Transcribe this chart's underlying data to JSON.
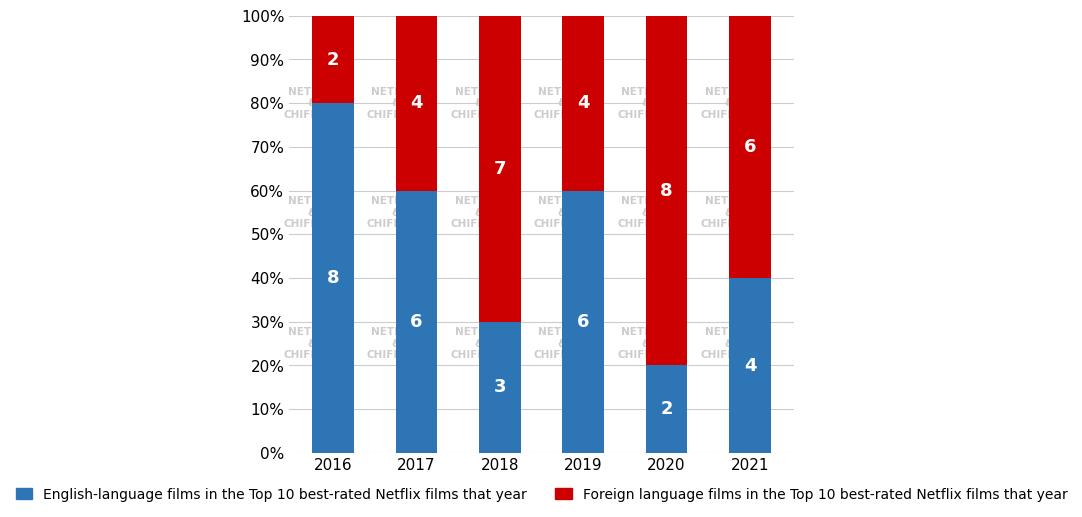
{
  "years": [
    "2016",
    "2017",
    "2018",
    "2019",
    "2020",
    "2021"
  ],
  "english_counts": [
    8,
    6,
    3,
    6,
    2,
    4
  ],
  "foreign_counts": [
    2,
    4,
    7,
    4,
    8,
    6
  ],
  "english_pct": [
    80,
    60,
    30,
    60,
    20,
    40
  ],
  "foreign_pct": [
    20,
    40,
    70,
    40,
    80,
    60
  ],
  "english_color": "#2E75B6",
  "foreign_color": "#CC0000",
  "background_color": "#FFFFFF",
  "grid_color": "#CCCCCC",
  "text_color": "#FFFFFF",
  "legend_english": "English-language films in the Top 10 best-rated Netflix films that year",
  "legend_foreign": "Foreign language films in the Top 10 best-rated Netflix films that year",
  "ylabel_ticks": [
    "0%",
    "10%",
    "20%",
    "30%",
    "40%",
    "50%",
    "60%",
    "70%",
    "80%",
    "90%",
    "100%"
  ],
  "ytick_vals": [
    0,
    10,
    20,
    30,
    40,
    50,
    60,
    70,
    80,
    90,
    100
  ],
  "bar_width": 0.5,
  "font_size_labels": 13,
  "font_size_ticks": 11,
  "font_size_legend": 10,
  "watermark_lines": [
    "NETFLIX",
    "&",
    "CHIFFRES"
  ],
  "watermark_color": "#CCCCCC"
}
